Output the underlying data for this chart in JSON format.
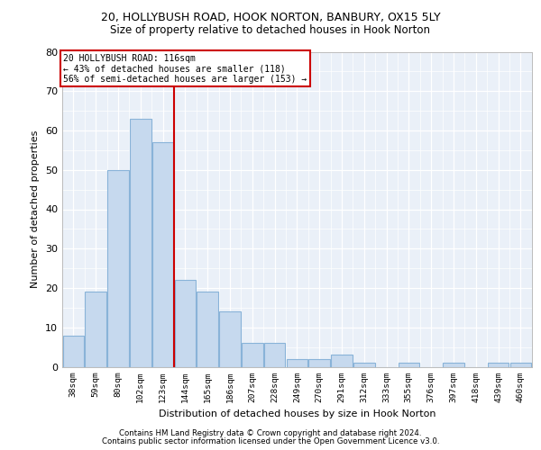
{
  "title_line1": "20, HOLLYBUSH ROAD, HOOK NORTON, BANBURY, OX15 5LY",
  "title_line2": "Size of property relative to detached houses in Hook Norton",
  "xlabel": "Distribution of detached houses by size in Hook Norton",
  "ylabel": "Number of detached properties",
  "categories": [
    "38sqm",
    "59sqm",
    "80sqm",
    "102sqm",
    "123sqm",
    "144sqm",
    "165sqm",
    "186sqm",
    "207sqm",
    "228sqm",
    "249sqm",
    "270sqm",
    "291sqm",
    "312sqm",
    "333sqm",
    "355sqm",
    "376sqm",
    "397sqm",
    "418sqm",
    "439sqm",
    "460sqm"
  ],
  "values": [
    8,
    19,
    50,
    63,
    57,
    22,
    19,
    14,
    6,
    6,
    2,
    2,
    3,
    1,
    0,
    1,
    0,
    1,
    0,
    1,
    1
  ],
  "bar_color": "#c6d9ee",
  "bar_edge_color": "#89b3d8",
  "vline_x": 4.5,
  "vline_color": "#cc0000",
  "annotation_line1": "20 HOLLYBUSH ROAD: 116sqm",
  "annotation_line2": "← 43% of detached houses are smaller (118)",
  "annotation_line3": "56% of semi-detached houses are larger (153) →",
  "annotation_box_color": "#ffffff",
  "annotation_box_edge": "#cc0000",
  "ylim": [
    0,
    80
  ],
  "yticks": [
    0,
    10,
    20,
    30,
    40,
    50,
    60,
    70,
    80
  ],
  "plot_bg": "#eaf0f8",
  "grid_color": "#ffffff",
  "footer_line1": "Contains HM Land Registry data © Crown copyright and database right 2024.",
  "footer_line2": "Contains public sector information licensed under the Open Government Licence v3.0."
}
